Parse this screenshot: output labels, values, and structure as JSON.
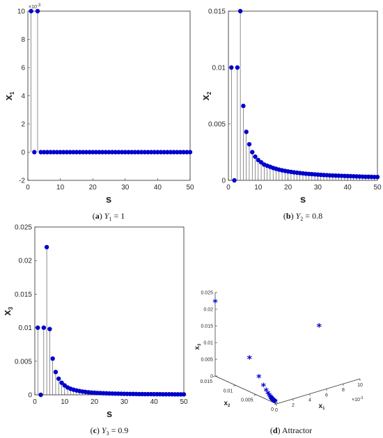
{
  "chart_data": [
    {
      "type": "stem",
      "panel": "a",
      "caption_letter": "a",
      "caption_text": "Y",
      "caption_sub": "1",
      "caption_rest": " = 1",
      "xlabel": "s",
      "ylabel": "x",
      "ylabel_sub": "1",
      "exponent": "×10",
      "exponent_power": "-3",
      "xlim": [
        0,
        50
      ],
      "ylim": [
        -2,
        10
      ],
      "xticks": [
        "0",
        "10",
        "20",
        "30",
        "40",
        "50"
      ],
      "yticks": [
        "-2",
        "0",
        "2",
        "4",
        "6",
        "8",
        "10"
      ],
      "x": [
        1,
        2,
        3,
        4,
        5,
        6,
        7,
        8,
        9,
        10,
        11,
        12,
        13,
        14,
        15,
        16,
        17,
        18,
        19,
        20,
        21,
        22,
        23,
        24,
        25,
        26,
        27,
        28,
        29,
        30,
        31,
        32,
        33,
        34,
        35,
        36,
        37,
        38,
        39,
        40,
        41,
        42,
        43,
        44,
        45,
        46,
        47,
        48,
        49,
        50
      ],
      "y": [
        10,
        0,
        10,
        0,
        0,
        0,
        0,
        0,
        0,
        0,
        0,
        0,
        0,
        0,
        0,
        0,
        0,
        0,
        0,
        0,
        0,
        0,
        0,
        0,
        0,
        0,
        0,
        0,
        0,
        0,
        0,
        0,
        0,
        0,
        0,
        0,
        0,
        0,
        0,
        0,
        0,
        0,
        0,
        0,
        0,
        0,
        0,
        0,
        0,
        0
      ],
      "color": "#0000cc"
    },
    {
      "type": "stem",
      "panel": "b",
      "caption_letter": "b",
      "caption_text": "Y",
      "caption_sub": "2",
      "caption_rest": " = 0.8",
      "xlabel": "s",
      "ylabel": "x",
      "ylabel_sub": "2",
      "xlim": [
        0,
        50
      ],
      "ylim": [
        0,
        0.015
      ],
      "xticks": [
        "0",
        "10",
        "20",
        "30",
        "40",
        "50"
      ],
      "yticks": [
        "0",
        "0.005",
        "0.01",
        "0.015"
      ],
      "x": [
        1,
        2,
        3,
        4,
        5,
        6,
        7,
        8,
        9,
        10,
        11,
        12,
        13,
        14,
        15,
        16,
        17,
        18,
        19,
        20,
        21,
        22,
        23,
        24,
        25,
        26,
        27,
        28,
        29,
        30,
        31,
        32,
        33,
        34,
        35,
        36,
        37,
        38,
        39,
        40,
        41,
        42,
        43,
        44,
        45,
        46,
        47,
        48,
        49,
        50
      ],
      "y": [
        0.01,
        0,
        0.01,
        0.015,
        0.0066,
        0.0043,
        0.0032,
        0.0025,
        0.0021,
        0.0018,
        0.0016,
        0.0014,
        0.0013,
        0.0012,
        0.0011,
        0.00102,
        0.00095,
        0.00089,
        0.00084,
        0.00079,
        0.00075,
        0.00071,
        0.00068,
        0.00065,
        0.00062,
        0.00059,
        0.00057,
        0.00055,
        0.00053,
        0.00051,
        0.00049,
        0.00047,
        0.00046,
        0.00044,
        0.00043,
        0.00042,
        0.00041,
        0.0004,
        0.00039,
        0.00038,
        0.00037,
        0.00036,
        0.00035,
        0.00034,
        0.00033,
        0.00032,
        0.00032,
        0.00031,
        0.0003,
        0.0003
      ],
      "color": "#0000cc"
    },
    {
      "type": "stem",
      "panel": "c",
      "caption_letter": "c",
      "caption_text": "Y",
      "caption_sub": "3",
      "caption_rest": " = 0.9",
      "xlabel": "s",
      "ylabel": "x",
      "ylabel_sub": "3",
      "xlim": [
        0,
        50
      ],
      "ylim": [
        0,
        0.025
      ],
      "xticks": [
        "0",
        "10",
        "20",
        "30",
        "40",
        "50"
      ],
      "yticks": [
        "0",
        "0.005",
        "0.01",
        "0.015",
        "0.02",
        "0.025"
      ],
      "x": [
        1,
        2,
        3,
        4,
        5,
        6,
        7,
        8,
        9,
        10,
        11,
        12,
        13,
        14,
        15,
        16,
        17,
        18,
        19,
        20,
        21,
        22,
        23,
        24,
        25,
        26,
        27,
        28,
        29,
        30,
        31,
        32,
        33,
        34,
        35,
        36,
        37,
        38,
        39,
        40,
        41,
        42,
        43,
        44,
        45,
        46,
        47,
        48,
        49,
        50
      ],
      "y": [
        0.01,
        0,
        0.01,
        0.022,
        0.0098,
        0.0054,
        0.0034,
        0.0024,
        0.0018,
        0.0014,
        0.0011,
        0.0009,
        0.00076,
        0.00065,
        0.00056,
        0.00049,
        0.00043,
        0.00038,
        0.00034,
        0.00031,
        0.00028,
        0.00026,
        0.00024,
        0.00022,
        0.0002,
        0.00019,
        0.00018,
        0.00017,
        0.00016,
        0.00015,
        0.00014,
        0.00013,
        0.00013,
        0.00012,
        0.00011,
        0.00011,
        0.0001,
        0.0001,
        0.0001,
        9e-05,
        9e-05,
        9e-05,
        8e-05,
        8e-05,
        8e-05,
        8e-05,
        7e-05,
        7e-05,
        7e-05,
        7e-05
      ],
      "color": "#0000cc"
    },
    {
      "type": "scatter3d",
      "panel": "d",
      "caption_letter": "d",
      "caption_rest": " Attractor",
      "xlabel": "x",
      "xlabel_sub": "1",
      "ylabel": "x",
      "ylabel_sub": "2",
      "zlabel": "x",
      "zlabel_sub": "3",
      "x_exponent": "×10",
      "x_exponent_power": "-3",
      "xlim": [
        0,
        10
      ],
      "ylim": [
        0,
        0.015
      ],
      "zlim": [
        0,
        0.025
      ],
      "xticks": [
        "0",
        "2",
        "4",
        "6",
        "8",
        "10"
      ],
      "yticks": [
        "0",
        "0.005",
        "0.01",
        "0.015"
      ],
      "zticks": [
        "0",
        "0.005",
        "0.01",
        "0.015",
        "0.02",
        "0.025"
      ],
      "points": [
        {
          "x1": 10,
          "x2": 0.01,
          "x3": 0.01
        },
        {
          "x1": 0,
          "x2": 0.015,
          "x3": 0.022
        },
        {
          "x1": 0,
          "x2": 0.0066,
          "x3": 0.0098
        },
        {
          "x1": 0,
          "x2": 0.0043,
          "x3": 0.0054
        },
        {
          "x1": 0,
          "x2": 0.0032,
          "x3": 0.0034
        },
        {
          "x1": 0,
          "x2": 0.0025,
          "x3": 0.0024
        },
        {
          "x1": 0,
          "x2": 0.0021,
          "x3": 0.0018
        },
        {
          "x1": 0,
          "x2": 0.0018,
          "x3": 0.0014
        },
        {
          "x1": 0,
          "x2": 0.0016,
          "x3": 0.0011
        },
        {
          "x1": 0,
          "x2": 0.0014,
          "x3": 0.0009
        },
        {
          "x1": 0,
          "x2": 0.0013,
          "x3": 0.00076
        },
        {
          "x1": 0,
          "x2": 0.0012,
          "x3": 0.00065
        },
        {
          "x1": 0,
          "x2": 0.0011,
          "x3": 0.00056
        },
        {
          "x1": 0,
          "x2": 0.001,
          "x3": 0.00049
        },
        {
          "x1": 0,
          "x2": 0.0009,
          "x3": 0.00043
        },
        {
          "x1": 0,
          "x2": 0.0008,
          "x3": 0.00038
        },
        {
          "x1": 0,
          "x2": 0.0007,
          "x3": 0.00034
        },
        {
          "x1": 0,
          "x2": 0.0006,
          "x3": 0.0003
        },
        {
          "x1": 0,
          "x2": 0.0005,
          "x3": 0.00026
        },
        {
          "x1": 0,
          "x2": 0.0004,
          "x3": 0.00022
        },
        {
          "x1": 0,
          "x2": 0.0003,
          "x3": 0.00018
        }
      ],
      "color": "#0000cc"
    }
  ]
}
